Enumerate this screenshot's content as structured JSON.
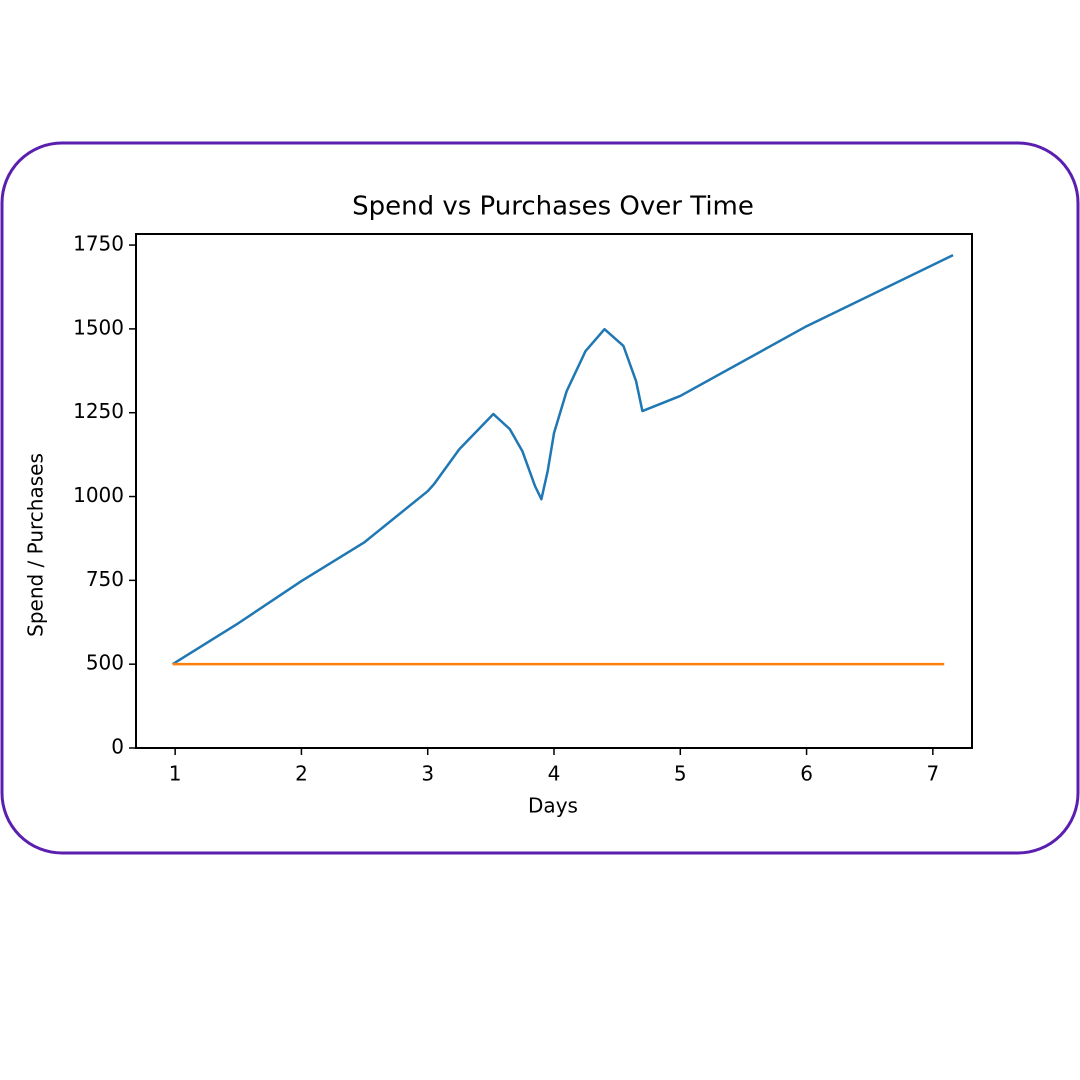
{
  "chart_data": {
    "type": "line",
    "title": "Spend vs Purchases Over Time",
    "xlabel": "Days",
    "ylabel": "Spend / Purchases",
    "xlim": [
      0.69,
      7.31
    ],
    "xticks": [
      1,
      2,
      3,
      4,
      5,
      6,
      7
    ],
    "ylim": [
      250,
      1783
    ],
    "yticks": [
      {
        "value": 250,
        "label": "0"
      },
      500,
      750,
      1000,
      1250,
      1500,
      1750
    ],
    "series": [
      {
        "color": "#1f77b4",
        "x": [
          0.98,
          1.5,
          2,
          2.5,
          3,
          3.05,
          3.25,
          3.52,
          3.65,
          3.75,
          3.85,
          3.9,
          3.95,
          4.0,
          4.1,
          4.25,
          4.4,
          4.55,
          4.65,
          4.7,
          5,
          6,
          7.16
        ],
        "values": [
          500,
          622,
          748,
          864,
          1016,
          1037,
          1141,
          1246,
          1201,
          1135,
          1031,
          992,
          1076,
          1189,
          1314,
          1434,
          1499,
          1449,
          1344,
          1255,
          1300,
          1508,
          1720
        ]
      },
      {
        "color": "#ff7f0e",
        "x": [
          0.98,
          7.09
        ],
        "values": [
          500,
          500
        ]
      }
    ]
  }
}
